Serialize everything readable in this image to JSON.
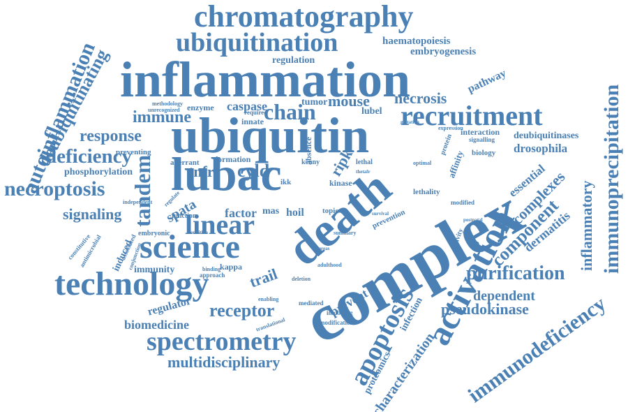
{
  "colors": {
    "word": "#4a80b4",
    "background": "#ffffff"
  },
  "words": [
    "chromatography",
    "ubiquitination",
    "haematopoiesis",
    "embryogenesis",
    "regulation",
    "inflammation",
    "pathway",
    "caspase",
    "tumor",
    "mouse",
    "necrosis",
    "chain",
    "recruitment",
    "immune",
    "innate",
    "lubel",
    "ubiquitin",
    "response",
    "deficiency",
    "preventing",
    "lubac",
    "cyld",
    "tnfr",
    "necroptosis",
    "phosphorylation",
    "signaling",
    "tandem",
    "linear",
    "science",
    "technology",
    "spata",
    "hoil",
    "death",
    "complex",
    "activation",
    "apoptosis",
    "component",
    "complexes",
    "essential",
    "dermatitis",
    "drosophila",
    "deubiquitinases",
    "interaction",
    "inflammatory",
    "immunoprecipitation",
    "immunodeficiency",
    "purification",
    "dependent",
    "pseudokinase",
    "characterization",
    "proteomics",
    "infection",
    "prevent",
    "receptor",
    "spectrometry",
    "multidisciplinary",
    "biomedicine",
    "regulator",
    "trail",
    "immunity",
    "induced",
    "autoinflammation",
    "deubiquitinating",
    "factor",
    "mas",
    "kappa",
    "formation",
    "aberrant",
    "enzyme",
    "methodology",
    "unrecognized",
    "required",
    "absence",
    "kenny",
    "ripk",
    "lethal",
    "kinase",
    "optimal",
    "lethality",
    "biology",
    "affinity",
    "protein",
    "signalling",
    "expression",
    "gestation",
    "modified",
    "activity",
    "prevention",
    "summary",
    "topic",
    "function",
    "regulate",
    "independent",
    "embryonic",
    "constitutive",
    "antimicrobial",
    "associated",
    "conjunction",
    "binding",
    "approach",
    "deletion",
    "enabling",
    "mediated",
    "inhibiting",
    "modification",
    "translational",
    "adulthood",
    "whereas",
    "ikk",
    "thetafr",
    "postnatal",
    "survival",
    "condition"
  ]
}
